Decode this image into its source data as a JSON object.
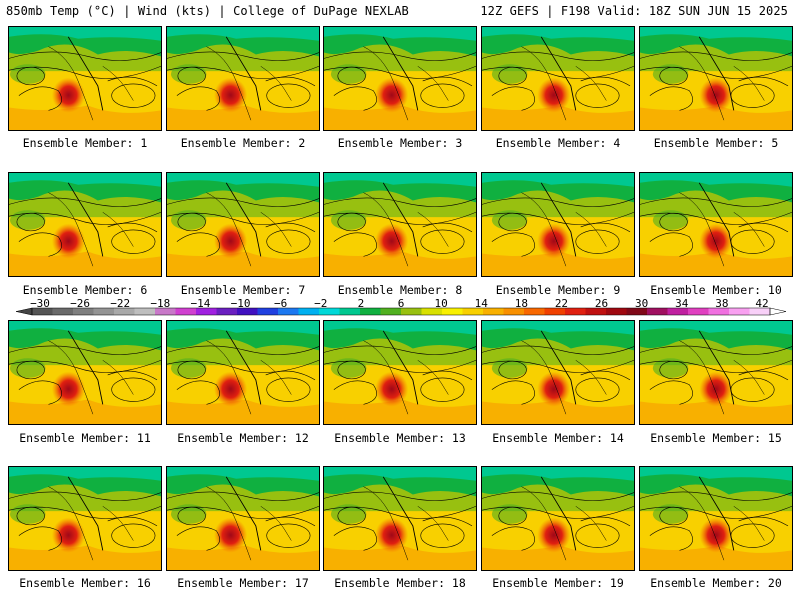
{
  "header": {
    "left": "850mb Temp (°C) | Wind (kts) | College of DuPage NEXLAB",
    "right": "12Z GEFS | F198 Valid: 18Z SUN JUN 15 2025"
  },
  "panels": [
    {
      "label": "Ensemble Member: 1"
    },
    {
      "label": "Ensemble Member: 2"
    },
    {
      "label": "Ensemble Member: 3"
    },
    {
      "label": "Ensemble Member: 4"
    },
    {
      "label": "Ensemble Member: 5"
    },
    {
      "label": "Ensemble Member: 6"
    },
    {
      "label": "Ensemble Member: 7"
    },
    {
      "label": "Ensemble Member: 8"
    },
    {
      "label": "Ensemble Member: 9"
    },
    {
      "label": "Ensemble Member: 10"
    },
    {
      "label": "Ensemble Member: 11"
    },
    {
      "label": "Ensemble Member: 12"
    },
    {
      "label": "Ensemble Member: 13"
    },
    {
      "label": "Ensemble Member: 14"
    },
    {
      "label": "Ensemble Member: 15"
    },
    {
      "label": "Ensemble Member: 16"
    },
    {
      "label": "Ensemble Member: 17"
    },
    {
      "label": "Ensemble Member: 18"
    },
    {
      "label": "Ensemble Member: 19"
    },
    {
      "label": "Ensemble Member: 20"
    }
  ],
  "colorbar": {
    "ticks": [
      "−30",
      "−26",
      "−22",
      "−18",
      "−14",
      "−10",
      "−6",
      "−2",
      "2",
      "6",
      "10",
      "14",
      "18",
      "22",
      "26",
      "30",
      "34",
      "38",
      "42"
    ],
    "colors": [
      "#555555",
      "#6a6a6a",
      "#7f7f7f",
      "#949494",
      "#a9a9a9",
      "#bebebe",
      "#c878c8",
      "#d040d0",
      "#a020e0",
      "#6a1fc0",
      "#4010c0",
      "#2040e0",
      "#1c78f0",
      "#00b0f0",
      "#00d8d8",
      "#00c890",
      "#10b040",
      "#50b020",
      "#98c010",
      "#d8e000",
      "#f8f000",
      "#f8d000",
      "#f8b000",
      "#f89000",
      "#f86800",
      "#f04000",
      "#e02010",
      "#c01010",
      "#a00810",
      "#800818",
      "#a01060",
      "#c020a0",
      "#e040c0",
      "#f070e0",
      "#f8a0f0",
      "#f8d0f8"
    ]
  }
}
